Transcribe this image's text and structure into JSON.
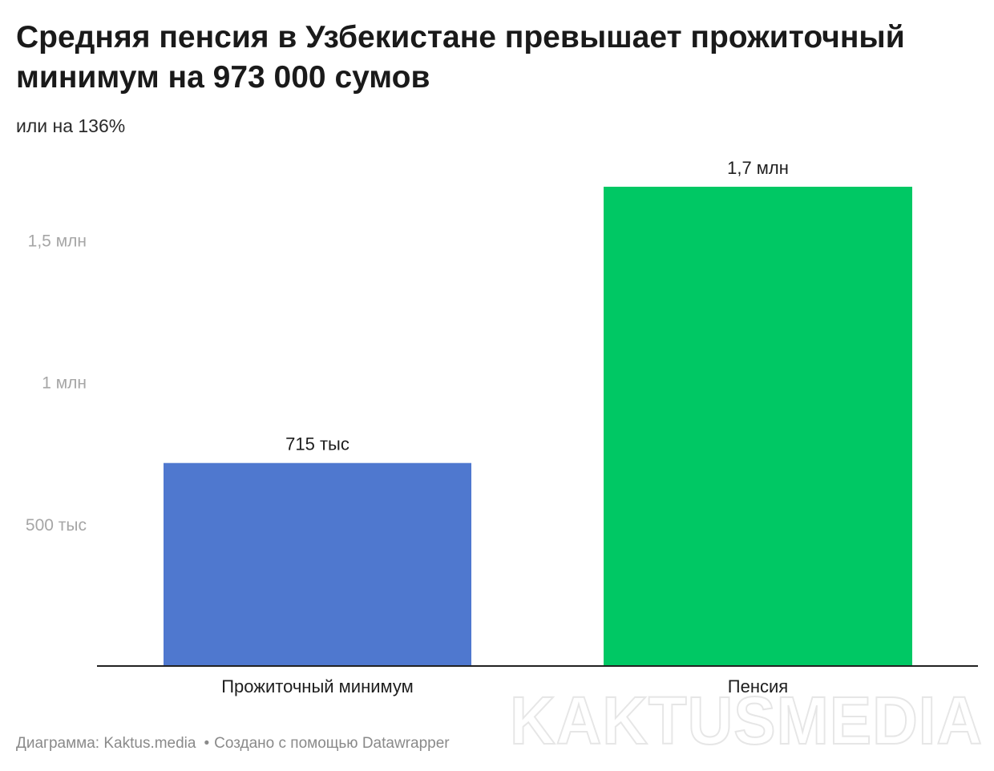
{
  "header": {
    "title": "Средняя пенсия в Узбекистане превышает прожиточный минимум на 973 000 сумов",
    "subtitle": "или на 136%"
  },
  "footer": {
    "source": "Диаграмма: Kaktus.media",
    "separator": "•",
    "credit": "Создано с помощью Datawrapper"
  },
  "watermark": {
    "text": "KAKTUSMEDIA"
  },
  "colors": {
    "bar_minimum": "#4f78cf",
    "bar_pension": "#00c864",
    "tick_label": "#a6a6a6",
    "axis_line": "#222222"
  },
  "chart_data": {
    "type": "bar",
    "categories": [
      "Прожиточный минимум",
      "Пенсия"
    ],
    "values": [
      715000,
      1688000
    ],
    "value_labels": [
      "715 тыс",
      "1,7 млн"
    ],
    "ylim": [
      0,
      1900000
    ],
    "yticks": [
      500000,
      1000000,
      1500000
    ],
    "ytick_labels": [
      "500 тыс",
      "1 млн",
      "1,5 млн"
    ],
    "grid": false,
    "xlabel": "",
    "ylabel": ""
  }
}
